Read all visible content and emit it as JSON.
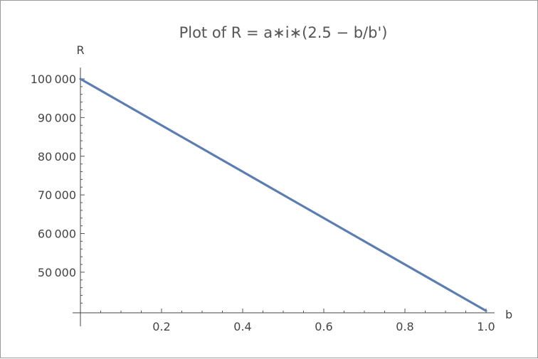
{
  "chart_data": {
    "type": "line",
    "title": "Plot of R = a∗i∗(2.5 − b/b')",
    "xlabel": "b",
    "ylabel": "R",
    "xlim": [
      0,
      1.0
    ],
    "ylim": [
      39500,
      100000
    ],
    "x_ticks": [
      {
        "value": 0.2,
        "label": "0.2"
      },
      {
        "value": 0.4,
        "label": "0.4"
      },
      {
        "value": 0.6,
        "label": "0.6"
      },
      {
        "value": 0.8,
        "label": "0.8"
      },
      {
        "value": 1.0,
        "label": "1.0"
      }
    ],
    "y_ticks": [
      {
        "value": 50000,
        "label": "50 000"
      },
      {
        "value": 60000,
        "label": "60 000"
      },
      {
        "value": 70000,
        "label": "70 000"
      },
      {
        "value": 80000,
        "label": "80 000"
      },
      {
        "value": 90000,
        "label": "90 000"
      },
      {
        "value": 100000,
        "label": "100 000"
      }
    ],
    "series": [
      {
        "color": "#5b7db1",
        "x": [
          0,
          1.0
        ],
        "y": [
          100000,
          40000
        ]
      }
    ],
    "grid": false,
    "legend": "none"
  }
}
